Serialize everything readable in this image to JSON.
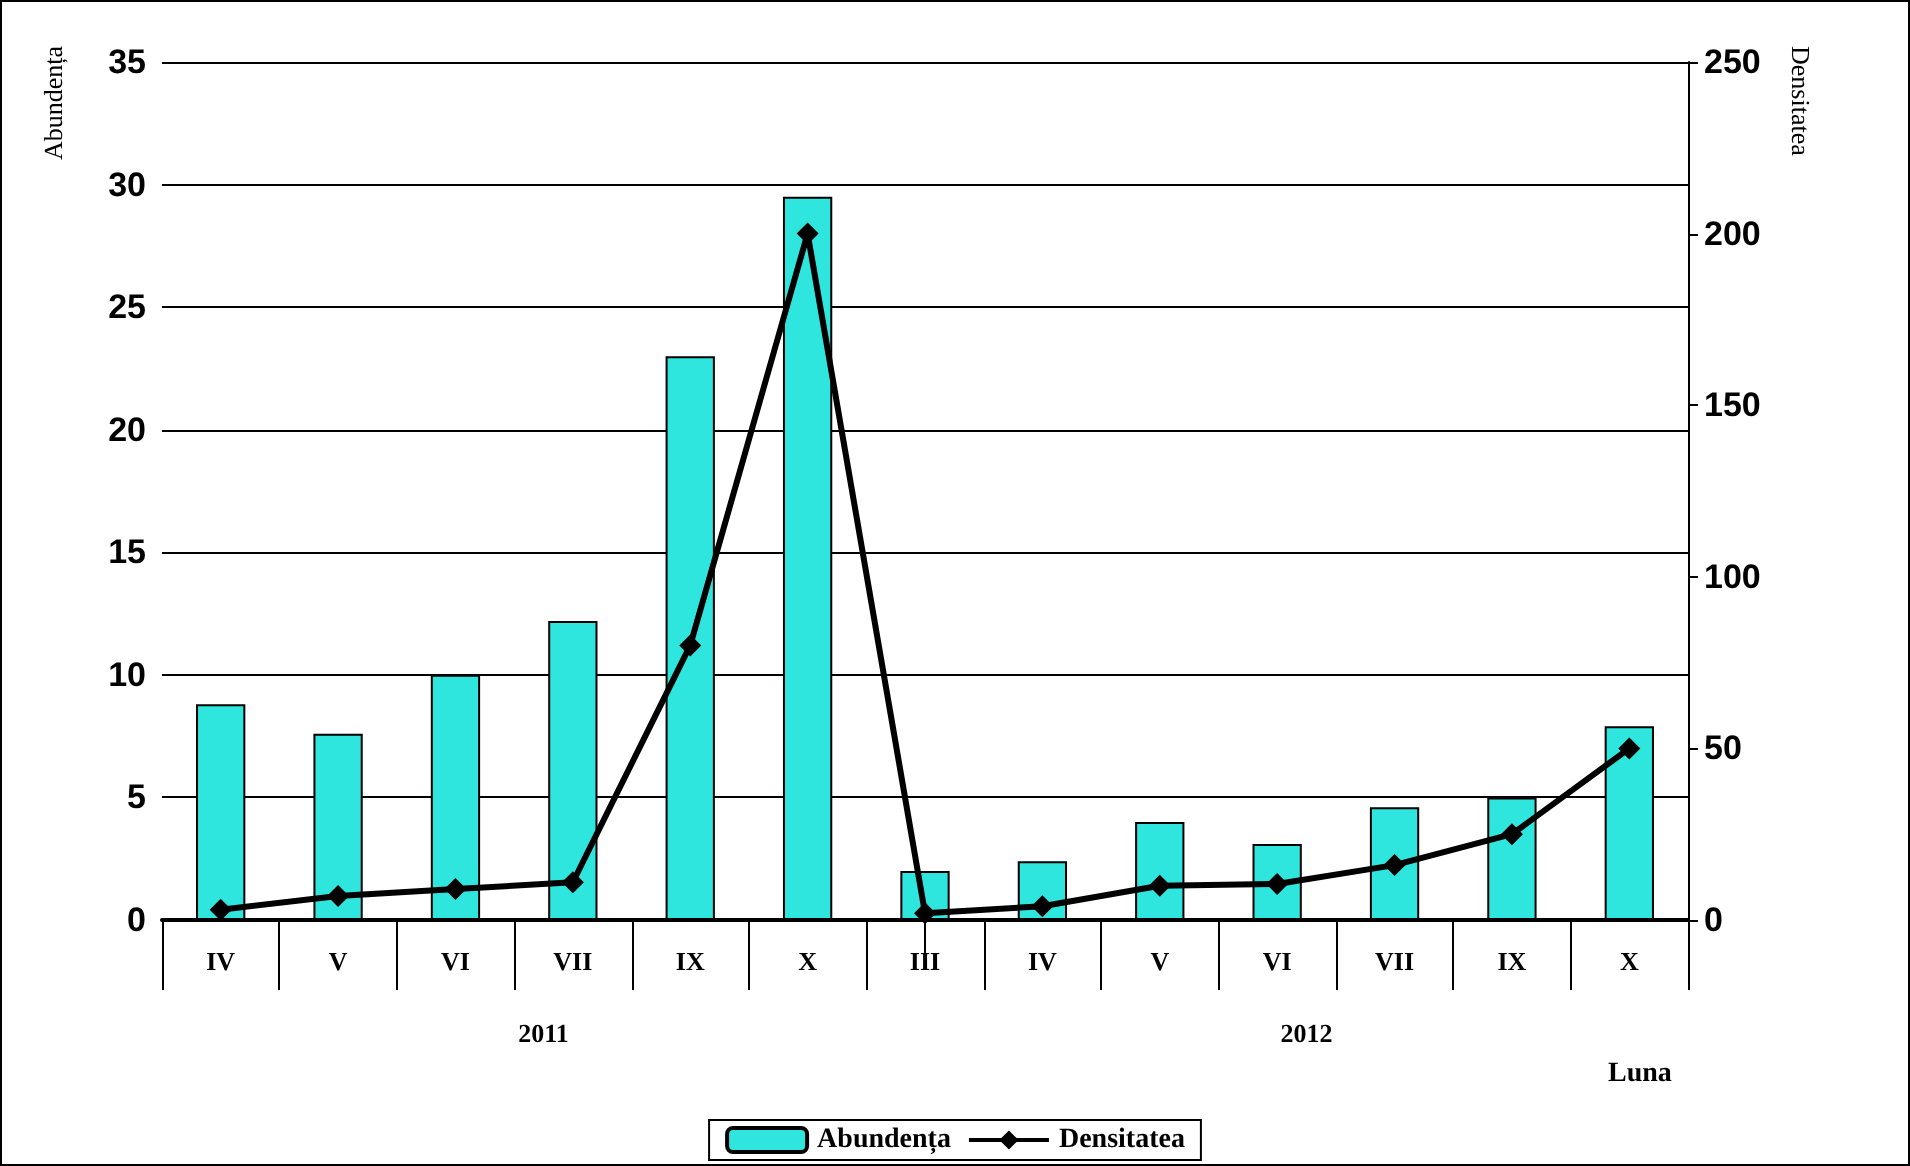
{
  "chart_data": {
    "type": "bar",
    "xlabel": "Luna",
    "ylabel": "Abundența",
    "y2label": "Densitatea",
    "categories": [
      "IV",
      "V",
      "VI",
      "VII",
      "IX",
      "X",
      "III",
      "IV",
      "V",
      "VI",
      "VII",
      "IX",
      "X"
    ],
    "series": [
      {
        "name": "Abundența",
        "color": "#2ee6de",
        "values": [
          8.8,
          7.6,
          10,
          12.2,
          23,
          29.5,
          2,
          2.4,
          4,
          3.1,
          4.6,
          5,
          7.9
        ]
      },
      {
        "name": "Densitatea",
        "type": "line",
        "axis": "y2",
        "color": "#000000",
        "marker": "diamond",
        "values": [
          3,
          7,
          9,
          11,
          80,
          200,
          2,
          4,
          10,
          10.5,
          16,
          25,
          50
        ]
      }
    ],
    "ylim": [
      0,
      35
    ],
    "yticks": [
      0,
      5,
      10,
      15,
      20,
      25,
      30,
      35
    ],
    "y2lim": [
      0,
      250
    ],
    "y2ticks": [
      0,
      50,
      100,
      150,
      200,
      250
    ],
    "grid": "y",
    "legend": "bottom",
    "annotations": [
      "2011",
      "2012"
    ]
  }
}
